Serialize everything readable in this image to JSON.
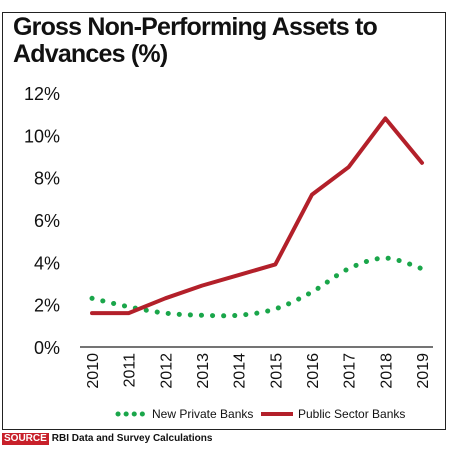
{
  "chart_data": {
    "type": "line",
    "title": "Gross Non-Performing Assets to Advances (%)",
    "xlabel": "",
    "ylabel": "",
    "x": [
      "2010",
      "2011",
      "2012",
      "2013",
      "2014",
      "2015",
      "2016",
      "2017",
      "2018",
      "2019"
    ],
    "ylim": [
      0,
      12
    ],
    "y_ticks": [
      "0%",
      "2%",
      "4%",
      "6%",
      "8%",
      "10%",
      "12%"
    ],
    "grid": false,
    "legend_position": "bottom",
    "series": [
      {
        "name": "New Private Banks",
        "style": "dotted",
        "color": "#1aa64a",
        "values": [
          2.3,
          1.9,
          1.6,
          1.5,
          1.5,
          1.8,
          2.6,
          3.7,
          4.2,
          3.7
        ]
      },
      {
        "name": "Public Sector Banks",
        "style": "solid",
        "color": "#b3202a",
        "values": [
          1.6,
          1.6,
          2.3,
          2.9,
          3.4,
          3.9,
          7.2,
          8.5,
          10.8,
          8.7
        ]
      }
    ]
  },
  "source": {
    "tag": "SOURCE",
    "text": "RBI Data and Survey Calculations"
  },
  "colors": {
    "source_tag": "#c8202a"
  }
}
